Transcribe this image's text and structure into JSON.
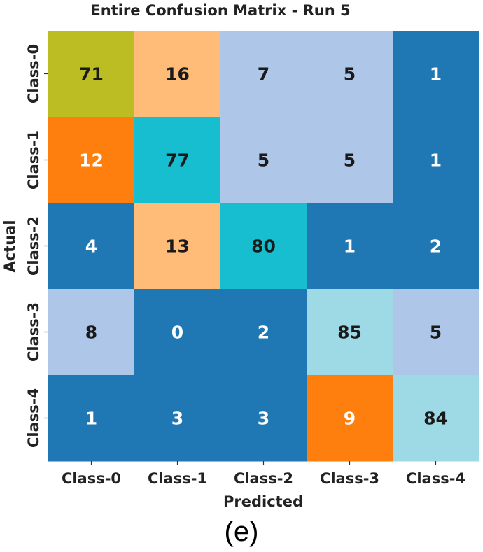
{
  "chart_data": {
    "type": "heatmap",
    "title": "Entire Confusion Matrix - Run 5",
    "xlabel": "Predicted",
    "ylabel": "Actual",
    "x_categories": [
      "Class-0",
      "Class-1",
      "Class-2",
      "Class-3",
      "Class-4"
    ],
    "y_categories": [
      "Class-0",
      "Class-1",
      "Class-2",
      "Class-3",
      "Class-4"
    ],
    "values": [
      [
        71,
        16,
        7,
        5,
        1
      ],
      [
        12,
        77,
        5,
        5,
        1
      ],
      [
        4,
        13,
        80,
        1,
        2
      ],
      [
        8,
        0,
        2,
        85,
        5
      ],
      [
        1,
        3,
        3,
        9,
        84
      ]
    ],
    "colormap": "tab20",
    "colors": {
      "dark_blue": "#1f77b4",
      "light_blue": "#aec7e8",
      "orange": "#ff7f0e",
      "light_orange": "#ffbb78",
      "olive": "#bcbd22",
      "cyan": "#17becf",
      "light_cyan": "#9edae5"
    },
    "cell_colors": [
      [
        "#bcbd22",
        "#ffbb78",
        "#aec7e8",
        "#aec7e8",
        "#1f77b4"
      ],
      [
        "#ff7f0e",
        "#17becf",
        "#aec7e8",
        "#aec7e8",
        "#1f77b4"
      ],
      [
        "#1f77b4",
        "#ffbb78",
        "#17becf",
        "#1f77b4",
        "#1f77b4"
      ],
      [
        "#aec7e8",
        "#1f77b4",
        "#1f77b4",
        "#9edae5",
        "#aec7e8"
      ],
      [
        "#1f77b4",
        "#1f77b4",
        "#1f77b4",
        "#ff7f0e",
        "#9edae5"
      ]
    ],
    "annotation_color_on_dark": "#ffffff",
    "annotation_color_on_light": "#1a1a1a"
  },
  "caption": "(e)"
}
